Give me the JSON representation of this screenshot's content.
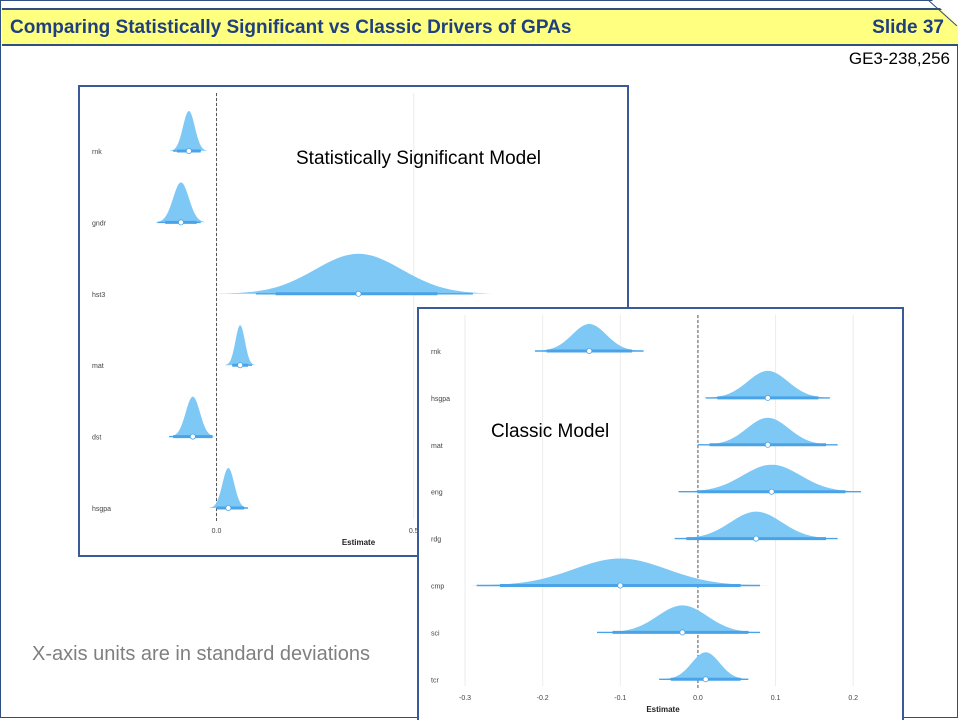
{
  "slide": {
    "title": "Comparing Statistically Significant vs Classic Drivers of GPAs",
    "slide_number": "Slide 37",
    "reference": "GE3-238,256",
    "note": "X-axis units are in standard deviations"
  },
  "colors": {
    "title_bg": "#ffff80",
    "title_text": "#1f3f7f",
    "border": "#3a5a9a",
    "density_fill": "#7ec8f5",
    "interval_line": "#4aa3e8",
    "zero_line": "#555555"
  },
  "chart_data": [
    {
      "type": "ridgeline",
      "title": "Statistically Significant Model",
      "xlabel": "Estimate",
      "ylabel": "",
      "xlim": [
        -0.27,
        0.99
      ],
      "x_ticks": [
        0.0,
        0.5
      ],
      "x_tick_labels": [
        "0.0",
        "0.5"
      ],
      "zero_line": true,
      "grid": "vertical",
      "categories": [
        "rnk",
        "gndr",
        "hst3",
        "mat",
        "dst",
        "hsgpa"
      ],
      "estimates": [
        -0.07,
        -0.09,
        0.36,
        0.06,
        -0.06,
        0.03
      ],
      "spread_sd": [
        0.015,
        0.02,
        0.11,
        0.012,
        0.018,
        0.015
      ],
      "inner_interval": [
        [
          -0.1,
          -0.04
        ],
        [
          -0.13,
          -0.05
        ],
        [
          0.15,
          0.56
        ],
        [
          0.04,
          0.08
        ],
        [
          -0.11,
          -0.01
        ],
        [
          0.0,
          0.07
        ]
      ],
      "outer_interval": [
        [
          -0.11,
          -0.04
        ],
        [
          -0.15,
          -0.04
        ],
        [
          0.1,
          0.65
        ],
        [
          0.04,
          0.09
        ],
        [
          -0.12,
          -0.01
        ],
        [
          0.0,
          0.08
        ]
      ]
    },
    {
      "type": "ridgeline",
      "title": "Classic Model",
      "xlabel": "Estimate",
      "ylabel": "",
      "xlim": [
        -0.34,
        0.25
      ],
      "x_ticks": [
        -0.3,
        -0.2,
        -0.1,
        0.0,
        0.1,
        0.2
      ],
      "x_tick_labels": [
        "-0.3",
        "-0.2",
        "-0.1",
        "0.0",
        "0.1",
        "0.2"
      ],
      "zero_line": true,
      "grid": "vertical",
      "categories": [
        "rnk",
        "hsgpa",
        "mat",
        "eng",
        "rdg",
        "cmp",
        "sci",
        "tcr"
      ],
      "estimates": [
        -0.14,
        0.09,
        0.09,
        0.095,
        0.075,
        -0.1,
        -0.02,
        0.01
      ],
      "spread_sd": [
        0.022,
        0.026,
        0.027,
        0.037,
        0.033,
        0.06,
        0.032,
        0.018
      ],
      "inner_interval": [
        [
          -0.195,
          -0.085
        ],
        [
          0.025,
          0.155
        ],
        [
          0.015,
          0.165
        ],
        [
          0.0,
          0.19
        ],
        [
          -0.015,
          0.165
        ],
        [
          -0.255,
          0.055
        ],
        [
          -0.11,
          0.065
        ],
        [
          -0.035,
          0.055
        ]
      ],
      "outer_interval": [
        [
          -0.21,
          -0.07
        ],
        [
          0.01,
          0.17
        ],
        [
          0.0,
          0.18
        ],
        [
          -0.025,
          0.21
        ],
        [
          -0.03,
          0.18
        ],
        [
          -0.285,
          0.08
        ],
        [
          -0.13,
          0.08
        ],
        [
          -0.05,
          0.065
        ]
      ]
    }
  ]
}
